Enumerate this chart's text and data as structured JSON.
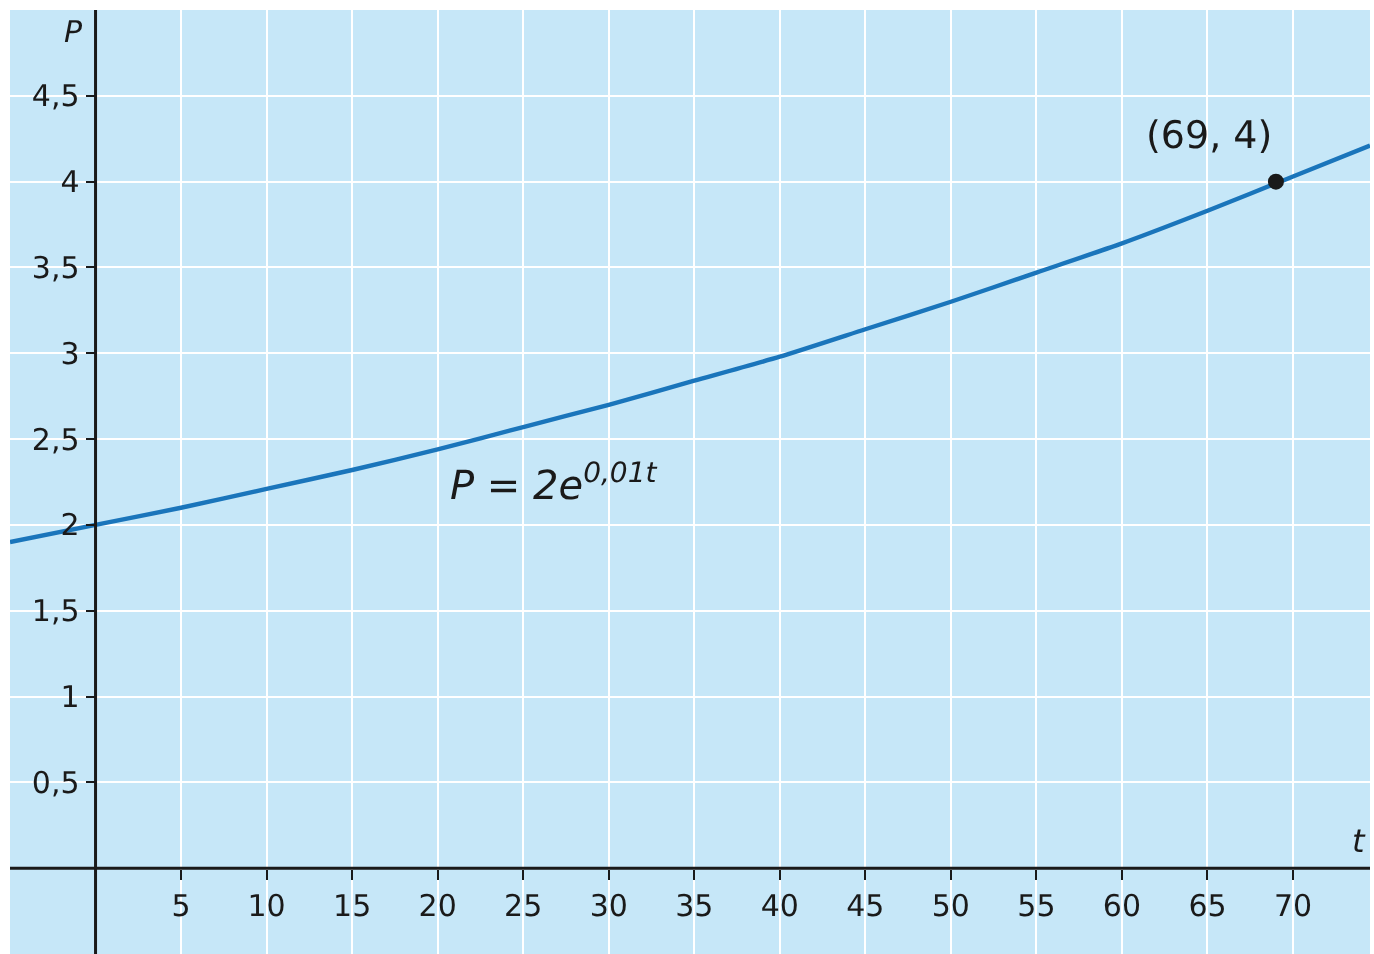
{
  "chart_data": {
    "type": "line",
    "xlabel": "t",
    "ylabel": "P",
    "xlim": [
      -5,
      74.5
    ],
    "ylim": [
      -0.5,
      5
    ],
    "xticks": [
      5,
      10,
      15,
      20,
      25,
      30,
      35,
      40,
      45,
      50,
      55,
      60,
      65,
      70
    ],
    "yticks": [
      {
        "value": 0.5,
        "label": "0,5"
      },
      1,
      {
        "value": 1.5,
        "label": "1,5"
      },
      2,
      {
        "value": 2.5,
        "label": "2,5"
      },
      3,
      {
        "value": 3.5,
        "label": "3,5"
      },
      4,
      {
        "value": 4.5,
        "label": "4,5"
      }
    ],
    "grid": true,
    "legend": false,
    "series": [
      {
        "color": "#1a75bb",
        "marker": "none",
        "x": [
          -5,
          0,
          5,
          10,
          15,
          20,
          25,
          30,
          35,
          40,
          45,
          50,
          55,
          60,
          65,
          70,
          74.5
        ],
        "values": [
          1.9,
          2,
          2.1,
          2.21,
          2.32,
          2.44,
          2.57,
          2.7,
          2.84,
          2.98,
          3.14,
          3.3,
          3.47,
          3.64,
          3.83,
          4.03,
          4.21
        ]
      },
      {
        "type": "scatter",
        "color": "#1a1a1a",
        "marker": "circle",
        "x": [
          69
        ],
        "values": [
          4
        ]
      }
    ],
    "annotations": [
      "P = 2e$^{0,01t}$",
      {
        "text": "(69, 4)",
        "x": 69,
        "y": 4
      }
    ]
  }
}
